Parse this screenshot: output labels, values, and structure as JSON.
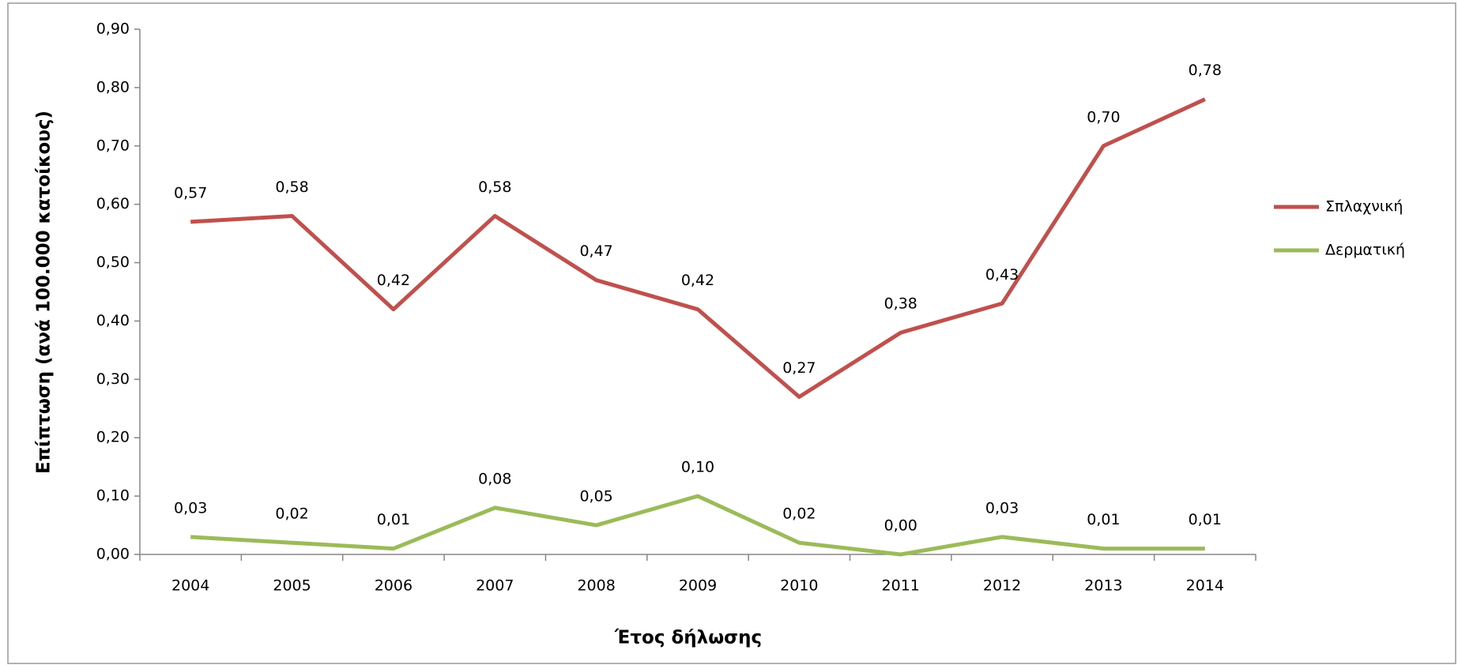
{
  "chart_data": {
    "type": "line",
    "y_label": "Επίπτωση (ανά 100.000 κατοίκους)",
    "x_label": "Έτος δήλωσης",
    "categories": [
      "2004",
      "2005",
      "2006",
      "2007",
      "2008",
      "2009",
      "2010",
      "2011",
      "2012",
      "2013",
      "2014"
    ],
    "series": [
      {
        "name": "Σπλαχνική",
        "color": "#c0504d",
        "values": [
          0.57,
          0.58,
          0.42,
          0.58,
          0.47,
          0.42,
          0.27,
          0.38,
          0.43,
          0.7,
          0.78
        ],
        "value_labels": [
          "0,57",
          "0,58",
          "0,42",
          "0,58",
          "0,47",
          "0,42",
          "0,27",
          "0,38",
          "0,43",
          "0,70",
          "0,78"
        ]
      },
      {
        "name": "Δερματική",
        "color": "#9bbb59",
        "values": [
          0.03,
          0.02,
          0.01,
          0.08,
          0.05,
          0.1,
          0.02,
          0.0,
          0.03,
          0.01,
          0.01
        ],
        "value_labels": [
          "0,03",
          "0,02",
          "0,01",
          "0,08",
          "0,05",
          "0,10",
          "0,02",
          "0,00",
          "0,03",
          "0,01",
          "0,01"
        ]
      }
    ],
    "ylim": [
      0,
      0.9
    ],
    "yticks": [
      {
        "value": 0,
        "label": "0,00"
      },
      {
        "value": 0.1,
        "label": "0,10"
      },
      {
        "value": 0.2,
        "label": "0,20"
      },
      {
        "value": 0.3,
        "label": "0,30"
      },
      {
        "value": 0.4,
        "label": "0,40"
      },
      {
        "value": 0.5,
        "label": "0,50"
      },
      {
        "value": 0.6,
        "label": "0,60"
      },
      {
        "value": 0.7,
        "label": "0,70"
      },
      {
        "value": 0.8,
        "label": "0,80"
      },
      {
        "value": 0.9,
        "label": "0,90"
      }
    ],
    "grid": false,
    "legend": "right"
  }
}
